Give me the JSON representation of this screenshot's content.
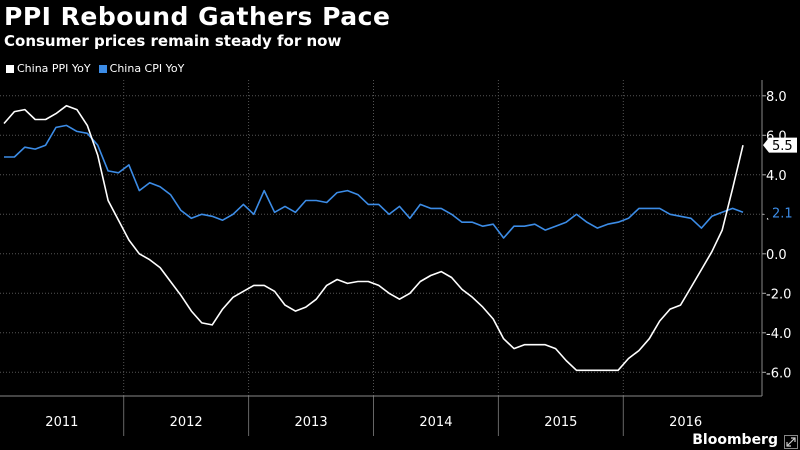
{
  "title": "PPI Rebound Gathers Pace",
  "subtitle": "Consumer prices remain steady for now",
  "source": "Bloomberg",
  "chart_data": {
    "type": "line",
    "title": "PPI Rebound Gathers Pace",
    "subtitle": "Consumer prices remain steady for now",
    "xlabel": "",
    "ylabel": "",
    "x_start": "2011-01",
    "x_end": "2016-09",
    "x_year_labels": [
      "2011",
      "2012",
      "2013",
      "2014",
      "2015",
      "2016"
    ],
    "y_ticks": [
      8.0,
      6.0,
      4.0,
      2.0,
      0.0,
      -2.0,
      -4.0,
      -6.0
    ],
    "y_tick_labels": [
      "8.0",
      "6.0",
      "4.0",
      "2.0",
      "0.0",
      "-2.0",
      "-4.0",
      "-6.0"
    ],
    "ylim": [
      -7.2,
      8.8
    ],
    "grid": "horizontal and yearly vertical dotted lines",
    "legend_position": "top-left",
    "series": [
      {
        "name": "China PPI YoY",
        "color": "#ffffff",
        "end_label": "5.5",
        "values": [
          6.6,
          7.2,
          7.3,
          6.8,
          6.8,
          7.1,
          7.5,
          7.3,
          6.5,
          5.0,
          2.7,
          1.7,
          0.7,
          0.0,
          -0.3,
          -0.7,
          -1.4,
          -2.1,
          -2.9,
          -3.5,
          -3.6,
          -2.8,
          -2.2,
          -1.9,
          -1.6,
          -1.6,
          -1.9,
          -2.6,
          -2.9,
          -2.7,
          -2.3,
          -1.6,
          -1.3,
          -1.5,
          -1.4,
          -1.4,
          -1.6,
          -2.0,
          -2.3,
          -2.0,
          -1.4,
          -1.1,
          -0.9,
          -1.2,
          -1.8,
          -2.2,
          -2.7,
          -3.3,
          -4.3,
          -4.8,
          -4.6,
          -4.6,
          -4.6,
          -4.8,
          -5.4,
          -5.9,
          -5.9,
          -5.9,
          -5.9,
          -5.9,
          -5.3,
          -4.9,
          -4.3,
          -3.4,
          -2.8,
          -2.6,
          -1.7,
          -0.8,
          0.1,
          1.2,
          3.3,
          5.5
        ]
      },
      {
        "name": "China CPI YoY",
        "color": "#3c8ce6",
        "end_label": "2.1",
        "values": [
          4.9,
          4.9,
          5.4,
          5.3,
          5.5,
          6.4,
          6.5,
          6.2,
          6.1,
          5.5,
          4.2,
          4.1,
          4.5,
          3.2,
          3.6,
          3.4,
          3.0,
          2.2,
          1.8,
          2.0,
          1.9,
          1.7,
          2.0,
          2.5,
          2.0,
          3.2,
          2.1,
          2.4,
          2.1,
          2.7,
          2.7,
          2.6,
          3.1,
          3.2,
          3.0,
          2.5,
          2.5,
          2.0,
          2.4,
          1.8,
          2.5,
          2.3,
          2.3,
          2.0,
          1.6,
          1.6,
          1.4,
          1.5,
          0.8,
          1.4,
          1.4,
          1.5,
          1.2,
          1.4,
          1.6,
          2.0,
          1.6,
          1.3,
          1.5,
          1.6,
          1.8,
          2.3,
          2.3,
          2.3,
          2.0,
          1.9,
          1.8,
          1.3,
          1.9,
          2.1,
          2.3,
          2.1
        ]
      }
    ]
  }
}
